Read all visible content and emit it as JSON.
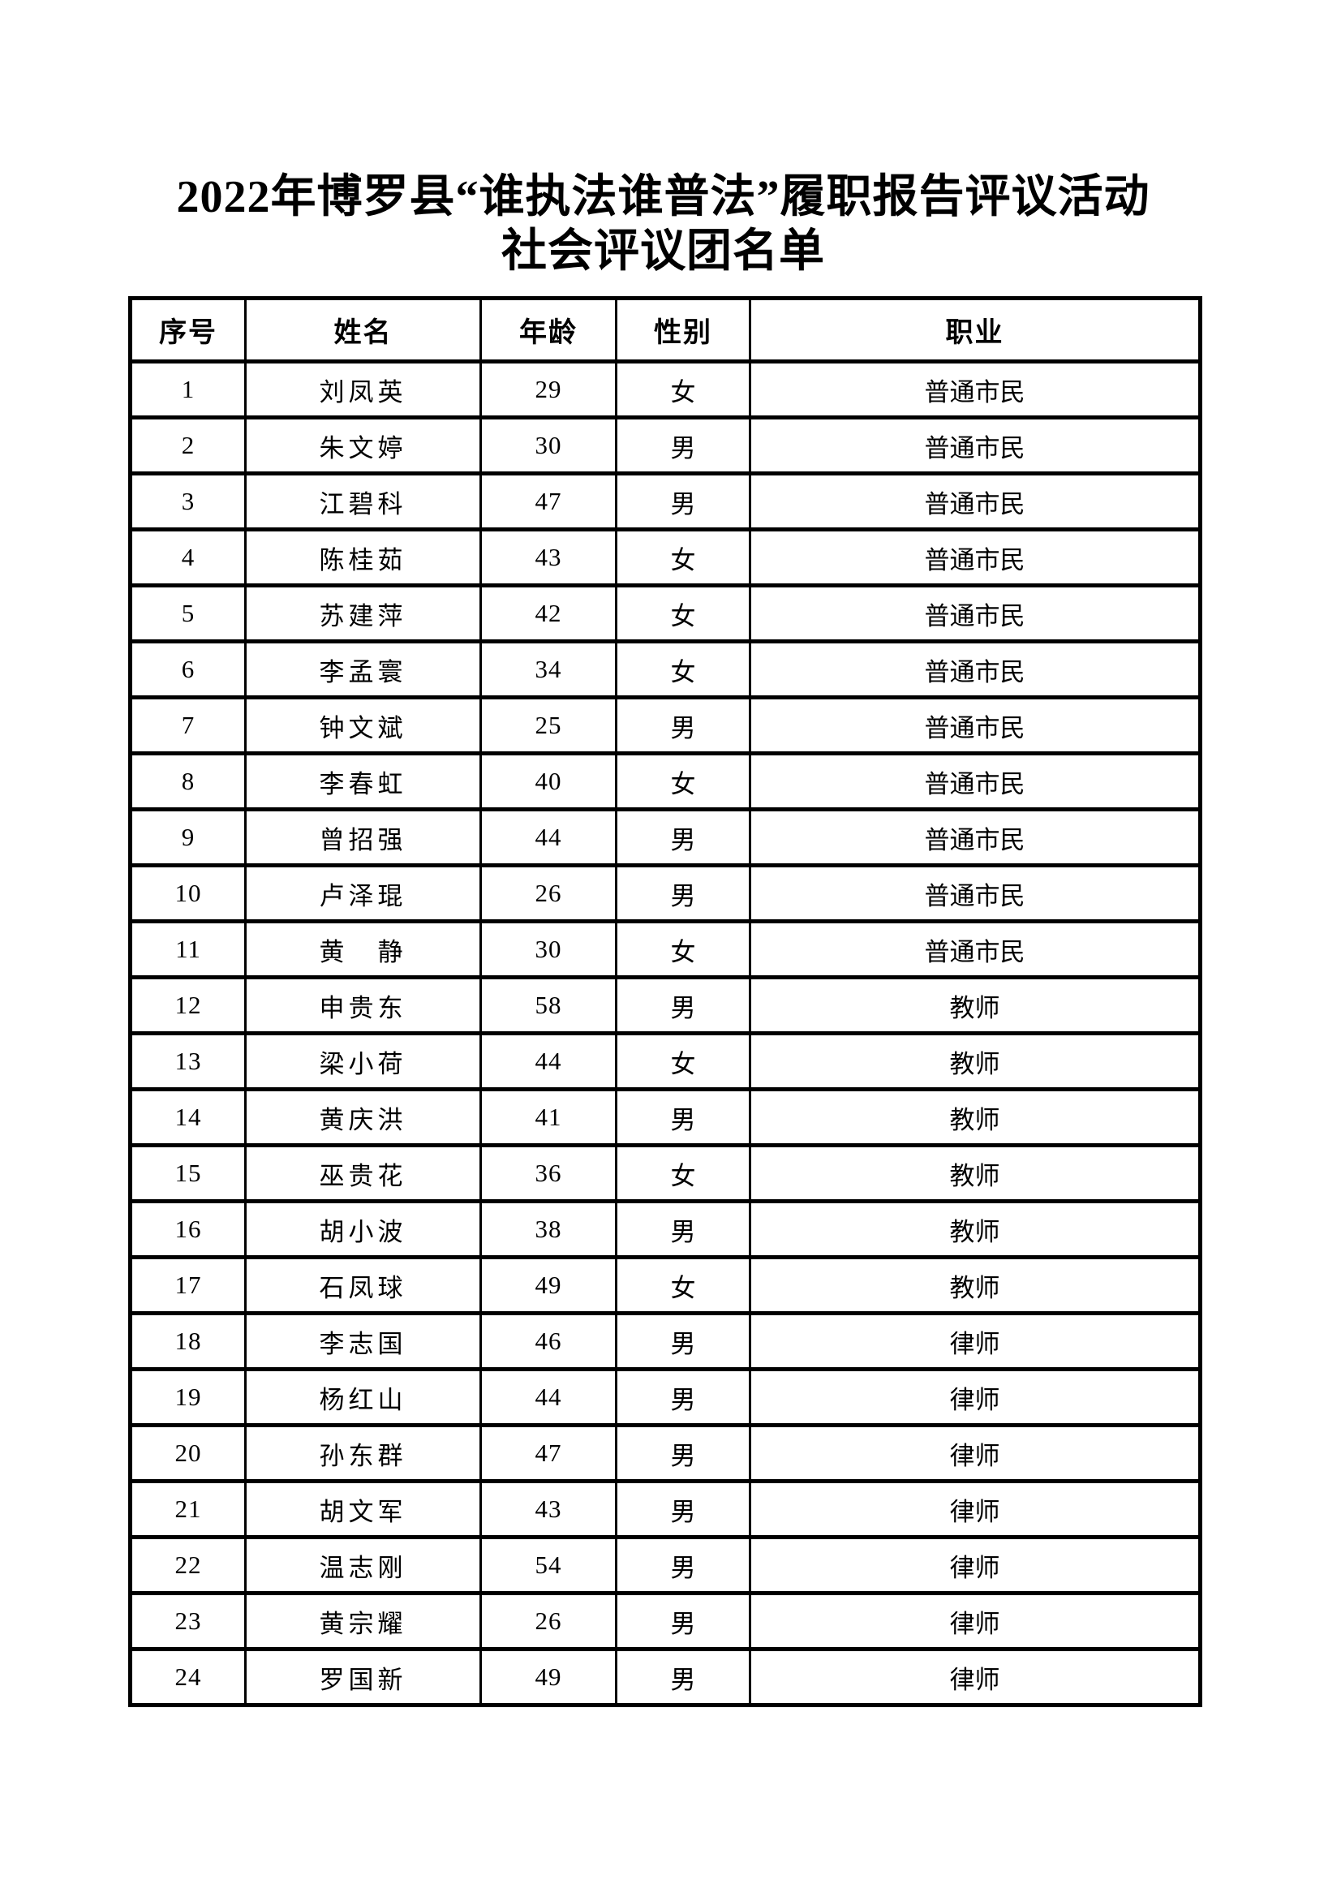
{
  "title": {
    "line1": "2022年博罗县“谁执法谁普法”履职报告评议活动",
    "line2": "社会评议团名单"
  },
  "table": {
    "headers": [
      "序号",
      "姓名",
      "年龄",
      "性别",
      "职业"
    ],
    "columns": [
      "no",
      "name",
      "age",
      "gender",
      "occupation"
    ],
    "rows": [
      {
        "no": "1",
        "name": "刘凤英",
        "age": "29",
        "gender": "女",
        "occupation": "普通市民"
      },
      {
        "no": "2",
        "name": "朱文婷",
        "age": "30",
        "gender": "男",
        "occupation": "普通市民"
      },
      {
        "no": "3",
        "name": "江碧科",
        "age": "47",
        "gender": "男",
        "occupation": "普通市民"
      },
      {
        "no": "4",
        "name": "陈桂茹",
        "age": "43",
        "gender": "女",
        "occupation": "普通市民"
      },
      {
        "no": "5",
        "name": "苏建萍",
        "age": "42",
        "gender": "女",
        "occupation": "普通市民"
      },
      {
        "no": "6",
        "name": "李孟寰",
        "age": "34",
        "gender": "女",
        "occupation": "普通市民"
      },
      {
        "no": "7",
        "name": "钟文斌",
        "age": "25",
        "gender": "男",
        "occupation": "普通市民"
      },
      {
        "no": "8",
        "name": "李春虹",
        "age": "40",
        "gender": "女",
        "occupation": "普通市民"
      },
      {
        "no": "9",
        "name": "曾招强",
        "age": "44",
        "gender": "男",
        "occupation": "普通市民"
      },
      {
        "no": "10",
        "name": "卢泽琨",
        "age": "26",
        "gender": "男",
        "occupation": "普通市民"
      },
      {
        "no": "11",
        "name": "黄　静",
        "age": "30",
        "gender": "女",
        "occupation": "普通市民"
      },
      {
        "no": "12",
        "name": "申贵东",
        "age": "58",
        "gender": "男",
        "occupation": "教师"
      },
      {
        "no": "13",
        "name": "梁小荷",
        "age": "44",
        "gender": "女",
        "occupation": "教师"
      },
      {
        "no": "14",
        "name": "黄庆洪",
        "age": "41",
        "gender": "男",
        "occupation": "教师"
      },
      {
        "no": "15",
        "name": "巫贵花",
        "age": "36",
        "gender": "女",
        "occupation": "教师"
      },
      {
        "no": "16",
        "name": "胡小波",
        "age": "38",
        "gender": "男",
        "occupation": "教师"
      },
      {
        "no": "17",
        "name": "石凤球",
        "age": "49",
        "gender": "女",
        "occupation": "教师"
      },
      {
        "no": "18",
        "name": "李志国",
        "age": "46",
        "gender": "男",
        "occupation": "律师"
      },
      {
        "no": "19",
        "name": "杨红山",
        "age": "44",
        "gender": "男",
        "occupation": "律师"
      },
      {
        "no": "20",
        "name": "孙东群",
        "age": "47",
        "gender": "男",
        "occupation": "律师"
      },
      {
        "no": "21",
        "name": "胡文军",
        "age": "43",
        "gender": "男",
        "occupation": "律师"
      },
      {
        "no": "22",
        "name": "温志刚",
        "age": "54",
        "gender": "男",
        "occupation": "律师"
      },
      {
        "no": "23",
        "name": "黄宗耀",
        "age": "26",
        "gender": "男",
        "occupation": "律师"
      },
      {
        "no": "24",
        "name": "罗国新",
        "age": "49",
        "gender": "男",
        "occupation": "律师"
      }
    ]
  }
}
